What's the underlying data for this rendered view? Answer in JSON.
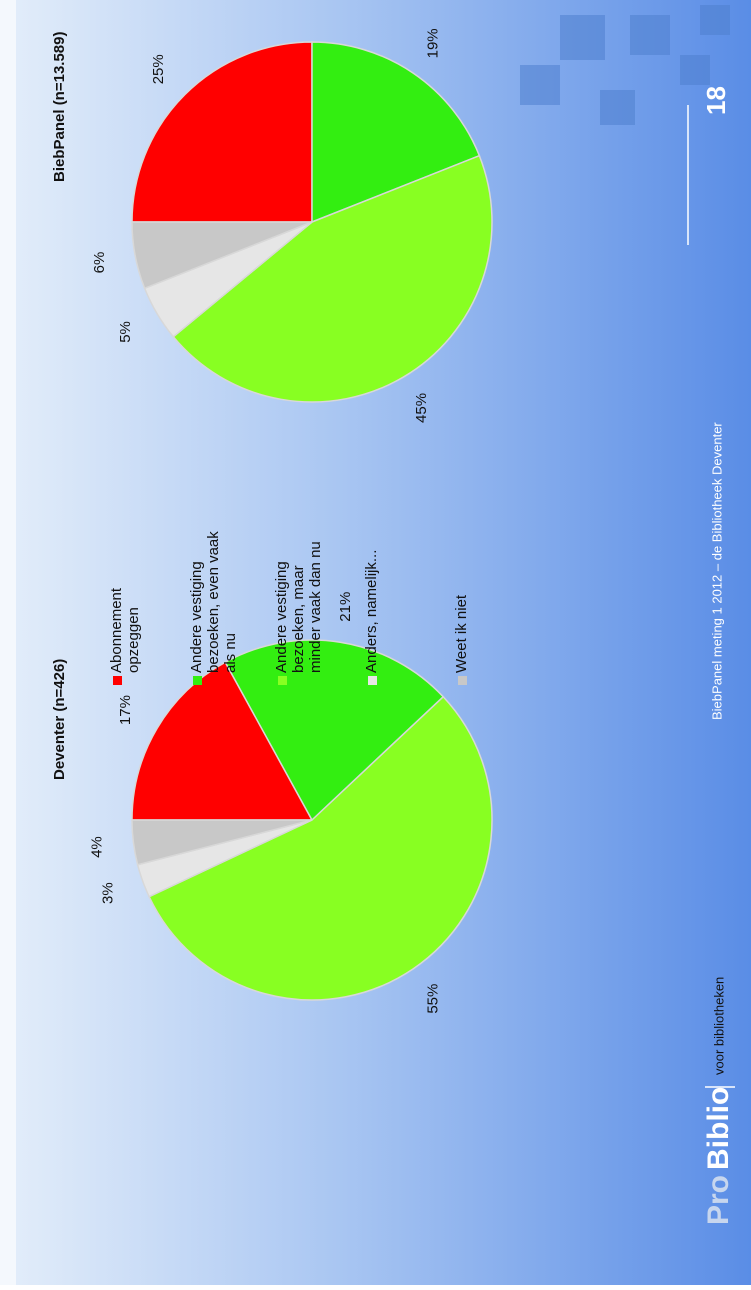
{
  "chart_data": [
    {
      "type": "pie",
      "title": "Deventer (n=426)",
      "categories": [
        "Abonnement opzeggen",
        "Andere vestiging bezoeken, even vaak als nu",
        "Andere vestiging bezoeken, maar minder vaak dan nu",
        "Anders, namelijk...",
        "Weet ik niet"
      ],
      "colors": [
        "#ff0000",
        "#33ee11",
        "#88ff22",
        "#e6e6e6",
        "#c8c8c8"
      ],
      "values": [
        17,
        21,
        55,
        3,
        4
      ],
      "value_labels": [
        "17%",
        "21%",
        "55%",
        "3%",
        "4%"
      ]
    },
    {
      "type": "pie",
      "title": "BiebPanel (n=13.589)",
      "values": [
        25,
        19,
        45,
        5,
        6
      ],
      "value_labels": [
        "25%",
        "19%",
        "45%",
        "5%",
        "6%"
      ]
    }
  ],
  "footer": {
    "logo_pro": "Pro",
    "logo_biblio": "Biblio",
    "tagline": "voor bibliotheken",
    "source": "BiebPanel meting 1 2012 – de Bibliotheek Deventer",
    "page": "18"
  }
}
